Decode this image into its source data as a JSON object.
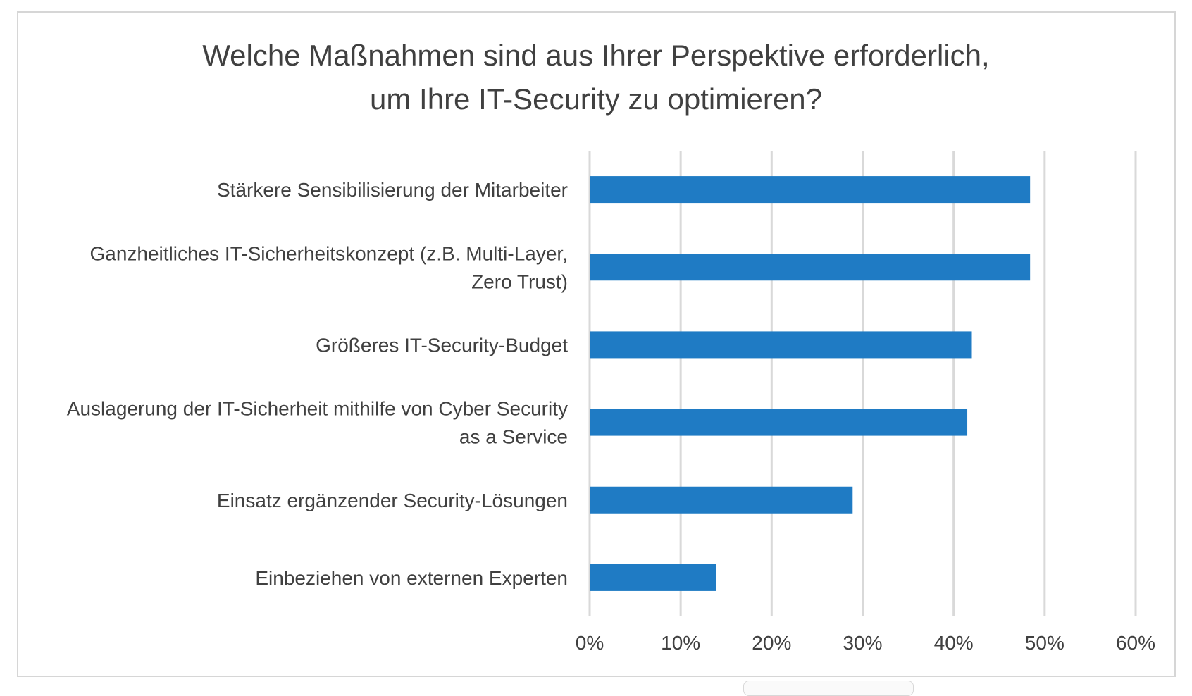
{
  "chart_data": {
    "type": "bar",
    "orientation": "horizontal",
    "title": "Welche Maßnahmen sind aus Ihrer Perspektive erforderlich, um Ihre IT-Security zu optimieren?",
    "title_lines": [
      "Welche Maßnahmen sind aus Ihrer Perspektive erforderlich,",
      "um Ihre IT-Security zu optimieren?"
    ],
    "categories": [
      [
        "Stärkere Sensibilisierung der Mitarbeiter"
      ],
      [
        "Ganzheitliches IT-Sicherheitskonzept (z.B. Multi-Layer,",
        "Zero Trust)"
      ],
      [
        "Größeres IT-Security-Budget"
      ],
      [
        "Auslagerung der IT-Sicherheit mithilfe von Cyber Security",
        "as a Service"
      ],
      [
        "Einsatz ergänzender Security-Lösungen"
      ],
      [
        "Einbeziehen von externen Experten"
      ]
    ],
    "values": [
      48.4,
      48.4,
      42,
      41.5,
      28.9,
      13.9
    ],
    "xlim": [
      0,
      60
    ],
    "xticks": [
      "0%",
      "10%",
      "20%",
      "30%",
      "40%",
      "50%",
      "60%"
    ],
    "grid": true,
    "bar_color": "#1f7bc4",
    "grid_color": "#d9d9d9",
    "xlabel": "",
    "ylabel": ""
  }
}
